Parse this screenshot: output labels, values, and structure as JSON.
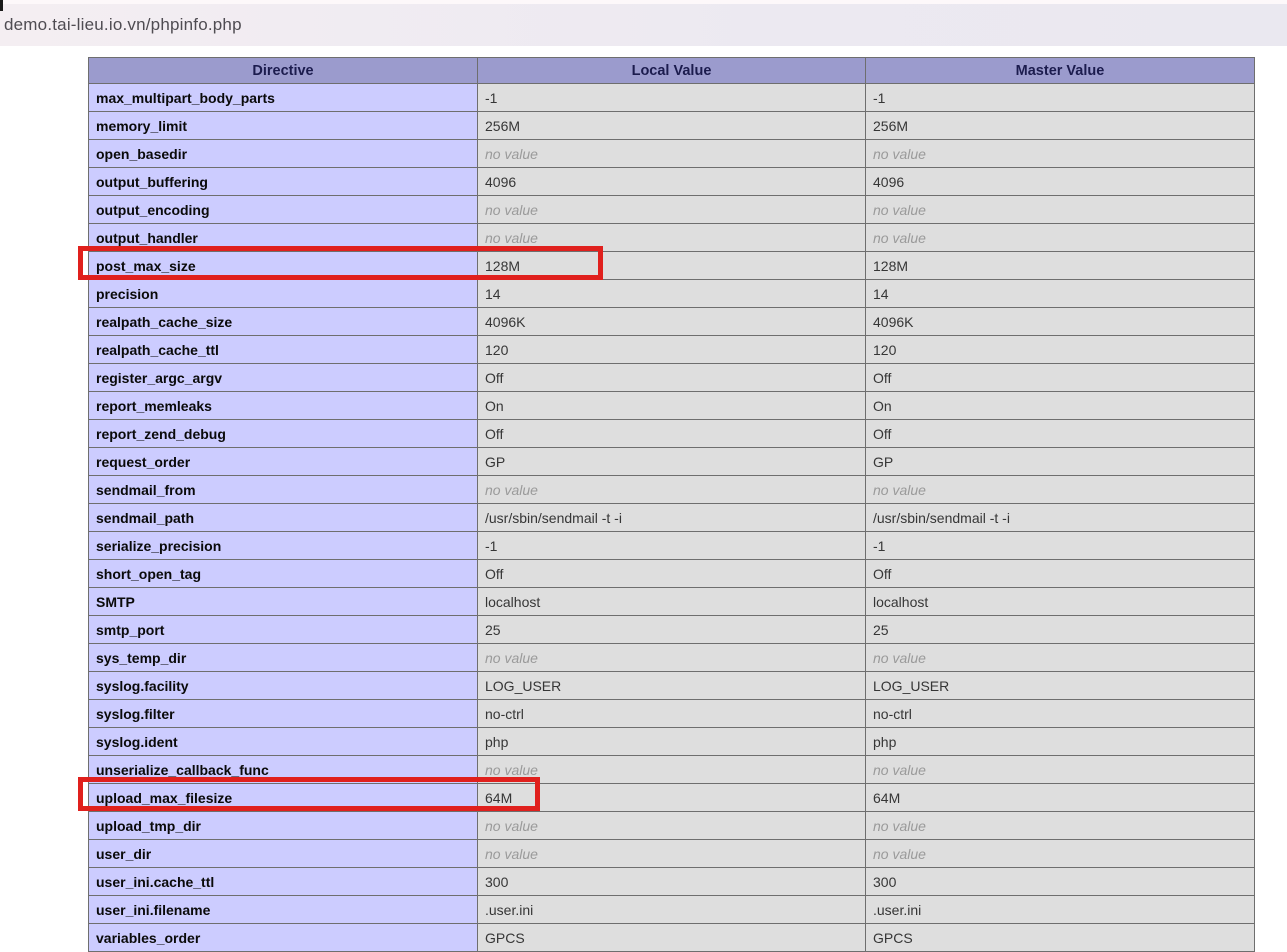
{
  "address_bar": {
    "url": "demo.tai-lieu.io.vn/phpinfo.php"
  },
  "colors": {
    "header_bg": "#9b9bcd",
    "header_text": "#1c1c4e",
    "directive_cell_bg": "#ccccff",
    "value_cell_bg": "#dedede",
    "no_value_text": "#9a9a9a",
    "cell_border": "#6e6e6e",
    "highlight_red": "#e0201d",
    "address_bar_bg": "#ece9f1"
  },
  "table": {
    "headers": [
      "Directive",
      "Local Value",
      "Master Value"
    ],
    "no_value_label": "no value",
    "rows": [
      {
        "directive": "max_multipart_body_parts",
        "local": "-1",
        "master": "-1",
        "highlight": false
      },
      {
        "directive": "memory_limit",
        "local": "256M",
        "master": "256M",
        "highlight": false
      },
      {
        "directive": "open_basedir",
        "local": "no value",
        "master": "no value",
        "highlight": false
      },
      {
        "directive": "output_buffering",
        "local": "4096",
        "master": "4096",
        "highlight": false
      },
      {
        "directive": "output_encoding",
        "local": "no value",
        "master": "no value",
        "highlight": false
      },
      {
        "directive": "output_handler",
        "local": "no value",
        "master": "no value",
        "highlight": false
      },
      {
        "directive": "post_max_size",
        "local": "128M",
        "master": "128M",
        "highlight": true
      },
      {
        "directive": "precision",
        "local": "14",
        "master": "14",
        "highlight": false
      },
      {
        "directive": "realpath_cache_size",
        "local": "4096K",
        "master": "4096K",
        "highlight": false
      },
      {
        "directive": "realpath_cache_ttl",
        "local": "120",
        "master": "120",
        "highlight": false
      },
      {
        "directive": "register_argc_argv",
        "local": "Off",
        "master": "Off",
        "highlight": false
      },
      {
        "directive": "report_memleaks",
        "local": "On",
        "master": "On",
        "highlight": false
      },
      {
        "directive": "report_zend_debug",
        "local": "Off",
        "master": "Off",
        "highlight": false
      },
      {
        "directive": "request_order",
        "local": "GP",
        "master": "GP",
        "highlight": false
      },
      {
        "directive": "sendmail_from",
        "local": "no value",
        "master": "no value",
        "highlight": false
      },
      {
        "directive": "sendmail_path",
        "local": "/usr/sbin/sendmail -t -i",
        "master": "/usr/sbin/sendmail -t -i",
        "highlight": false
      },
      {
        "directive": "serialize_precision",
        "local": "-1",
        "master": "-1",
        "highlight": false
      },
      {
        "directive": "short_open_tag",
        "local": "Off",
        "master": "Off",
        "highlight": false
      },
      {
        "directive": "SMTP",
        "local": "localhost",
        "master": "localhost",
        "highlight": false
      },
      {
        "directive": "smtp_port",
        "local": "25",
        "master": "25",
        "highlight": false
      },
      {
        "directive": "sys_temp_dir",
        "local": "no value",
        "master": "no value",
        "highlight": false
      },
      {
        "directive": "syslog.facility",
        "local": "LOG_USER",
        "master": "LOG_USER",
        "highlight": false
      },
      {
        "directive": "syslog.filter",
        "local": "no-ctrl",
        "master": "no-ctrl",
        "highlight": false
      },
      {
        "directive": "syslog.ident",
        "local": "php",
        "master": "php",
        "highlight": false
      },
      {
        "directive": "unserialize_callback_func",
        "local": "no value",
        "master": "no value",
        "highlight": false
      },
      {
        "directive": "upload_max_filesize",
        "local": "64M",
        "master": "64M",
        "highlight": true
      },
      {
        "directive": "upload_tmp_dir",
        "local": "no value",
        "master": "no value",
        "highlight": false
      },
      {
        "directive": "user_dir",
        "local": "no value",
        "master": "no value",
        "highlight": false
      },
      {
        "directive": "user_ini.cache_ttl",
        "local": "300",
        "master": "300",
        "highlight": false
      },
      {
        "directive": "user_ini.filename",
        "local": ".user.ini",
        "master": ".user.ini",
        "highlight": false
      },
      {
        "directive": "variables_order",
        "local": "GPCS",
        "master": "GPCS",
        "highlight": false
      }
    ]
  },
  "annotations": {
    "highlighted_directives": [
      "post_max_size",
      "upload_max_filesize"
    ]
  }
}
